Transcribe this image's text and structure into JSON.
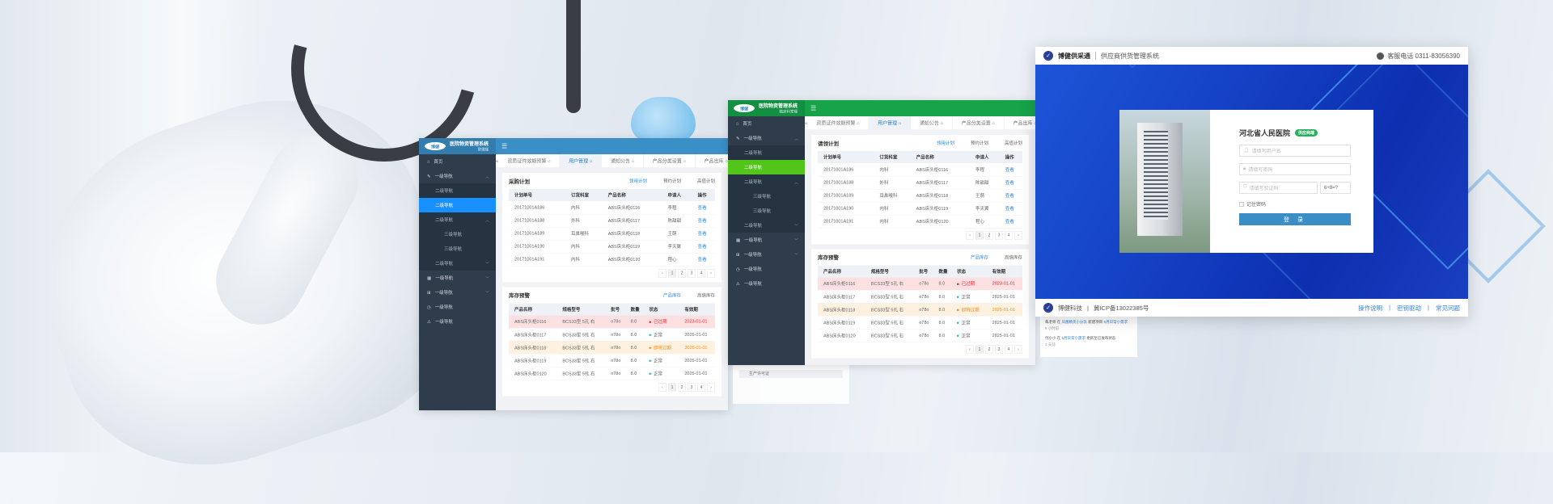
{
  "colors": {
    "admin1_header": "#3a8fc7",
    "admin1_active": "#1890ff",
    "admin2_header": "#16a34a",
    "admin2_active": "#52c41a",
    "sidebar": "#2e3c4c",
    "login_blue": "#1440c4",
    "link": "#2d8ae0",
    "expired": "#f5222d",
    "warning": "#fa8c16",
    "normal": "#13c2c2"
  },
  "admin1": {
    "logo": "博健",
    "title": "医院物资管理系统",
    "subtitle": "管理端",
    "menu_icon": "hamburger-icon",
    "tabs": [
      "资质证件效期预警",
      "用户管理",
      "通知公告",
      "产品分类设置",
      "产品出库"
    ],
    "active_tab": 1,
    "sidebar": [
      {
        "label": "首页",
        "level": 1,
        "icon": "home-icon"
      },
      {
        "label": "一级导航",
        "level": 1,
        "icon": "edit-icon",
        "chev": "^"
      },
      {
        "label": "二级导航",
        "level": 2
      },
      {
        "label": "二级导航",
        "level": 2,
        "active": true
      },
      {
        "label": "二级导航",
        "level": 2,
        "chev": "^"
      },
      {
        "label": "三级导航",
        "level": 3
      },
      {
        "label": "三级导航",
        "level": 3
      },
      {
        "label": "二级导航",
        "level": 2,
        "chev": "v"
      },
      {
        "label": "一级导航",
        "level": 1,
        "icon": "calendar-icon",
        "chev": "v"
      },
      {
        "label": "一级导航",
        "level": 1,
        "icon": "grid-icon",
        "chev": "v"
      },
      {
        "label": "一级导航",
        "level": 1,
        "icon": "clock-icon"
      },
      {
        "label": "一级导航",
        "level": 1,
        "icon": "warning-icon"
      }
    ],
    "plan": {
      "title": "采购计划",
      "tabs": [
        "领用计划",
        "预约计划",
        "高值计划"
      ],
      "active": 0,
      "headers": [
        "计划单号",
        "订货科室",
        "产品名称",
        "申请人",
        "操作"
      ],
      "rows": [
        [
          "20171001A186",
          "内科",
          "ABS床头柜0116",
          "李程",
          "查看"
        ],
        [
          "20171001A188",
          "外科",
          "ABS床头柜0117",
          "陈甜甜",
          "查看"
        ],
        [
          "20171001A189",
          "耳鼻喉科",
          "ABS床头柜0118",
          "王萌",
          "查看"
        ],
        [
          "20171001A190",
          "内科",
          "ABS床头柜0119",
          "李天翼",
          "查看"
        ],
        [
          "20171001A191",
          "内科",
          "ABS床头柜0120",
          "程心",
          "查看"
        ]
      ]
    },
    "stock": {
      "title": "库存预警",
      "tabs": [
        "产品库存",
        "高值库存"
      ],
      "active": 0,
      "headers": [
        "产品名称",
        "规格型号",
        "批号",
        "数量",
        "状态",
        "有效期"
      ],
      "rows": [
        [
          "ABS床头柜0116",
          "BCS33型 5孔 右",
          "o78o",
          "8.0",
          "已过期",
          "2023-01-01",
          "red"
        ],
        [
          "ABS床头柜0117",
          "BCS33型 5孔 右",
          "o78o",
          "8.0",
          "正常",
          "2025-01-01",
          ""
        ],
        [
          "ABS床头柜0118",
          "BCS33型 5孔 右",
          "o78o",
          "8.0",
          "即将过期",
          "2025-01-01",
          "orange"
        ],
        [
          "ABS床头柜0119",
          "BCS33型 5孔 右",
          "o78o",
          "8.0",
          "正常",
          "2025-01-01",
          ""
        ],
        [
          "ABS床头柜0120",
          "BCS33型 5孔 右",
          "o78o",
          "8.0",
          "正常",
          "2025-01-01",
          ""
        ]
      ]
    },
    "pagination": [
      "‹",
      "1",
      "2",
      "3",
      "4",
      "›"
    ]
  },
  "admin2": {
    "logo": "博健",
    "title": "医院物资管理系统",
    "subtitle": "临床科室端",
    "menu_icon": "hamburger-icon",
    "tabs": [
      "资质证件效期预警",
      "用户管理",
      "通知公告",
      "产品分类设置",
      "产品出库"
    ],
    "active_tab": 1,
    "sidebar": [
      {
        "label": "首页",
        "level": 1,
        "icon": "home-icon"
      },
      {
        "label": "一级导航",
        "level": 1,
        "icon": "edit-icon",
        "chev": "^"
      },
      {
        "label": "二级导航",
        "level": 2
      },
      {
        "label": "二级导航",
        "level": 2,
        "active": true
      },
      {
        "label": "二级导航",
        "level": 2,
        "chev": "^"
      },
      {
        "label": "三级导航",
        "level": 3
      },
      {
        "label": "三级导航",
        "level": 3
      },
      {
        "label": "二级导航",
        "level": 2,
        "chev": "v"
      },
      {
        "label": "一级导航",
        "level": 1,
        "icon": "calendar-icon",
        "chev": "v"
      },
      {
        "label": "一级导航",
        "level": 1,
        "icon": "grid-icon",
        "chev": "v"
      },
      {
        "label": "一级导航",
        "level": 1,
        "icon": "clock-icon"
      },
      {
        "label": "一级导航",
        "level": 1,
        "icon": "warning-icon"
      }
    ],
    "plan": {
      "title": "请领计划",
      "tabs": [
        "领用计划",
        "预约计划",
        "高值计划"
      ],
      "active": 0,
      "headers": [
        "计划单号",
        "订货科室",
        "产品名称",
        "申请人",
        "操作"
      ],
      "rows": [
        [
          "20171001A186",
          "内科",
          "ABS床头柜0116",
          "李程",
          "查看"
        ],
        [
          "20171001A188",
          "外科",
          "ABS床头柜0117",
          "陈甜甜",
          "查看"
        ],
        [
          "20171001A189",
          "耳鼻喉科",
          "ABS床头柜0118",
          "王萌",
          "查看"
        ],
        [
          "20171001A190",
          "内科",
          "ABS床头柜0119",
          "李天翼",
          "查看"
        ],
        [
          "20171001A191",
          "内科",
          "ABS床头柜0120",
          "程心",
          "查看"
        ]
      ]
    },
    "stock": {
      "title": "库存预警",
      "tabs": [
        "产品库存",
        "高值库存"
      ],
      "active": 0,
      "headers": [
        "产品名称",
        "规格型号",
        "批号",
        "数量",
        "状态",
        "有效期"
      ],
      "rows": [
        [
          "ABS床头柜0116",
          "BCS33型 5孔 右",
          "o78o",
          "8.0",
          "已过期",
          "2023-01-01",
          "red"
        ],
        [
          "ABS床头柜0117",
          "BCS33型 5孔 右",
          "o78o",
          "8.0",
          "正常",
          "2025-01-01",
          ""
        ],
        [
          "ABS床头柜0118",
          "BCS33型 5孔 右",
          "o78o",
          "8.0",
          "即将过期",
          "2025-01-01",
          "orange"
        ],
        [
          "ABS床头柜0119",
          "BCS33型 5孔 右",
          "o78o",
          "8.0",
          "正常",
          "2025-01-01",
          ""
        ],
        [
          "ABS床头柜0120",
          "BCS33型 5孔 右",
          "o78o",
          "8.0",
          "正常",
          "2025-01-01",
          ""
        ]
      ]
    },
    "pagination": [
      "‹",
      "1",
      "2",
      "3",
      "4",
      "›"
    ]
  },
  "ghost": {
    "item": "生产许可证"
  },
  "activity": [
    {
      "user": "朱老师",
      "in": "在",
      "group": "凤凰精英小分队",
      "action": "新建项目",
      "target": "5月日常小需求",
      "time": "5 小时前"
    },
    {
      "user": "付小小",
      "in": "在",
      "group": "5月日常小需求",
      "action": "更新至已发布状态",
      "target": "",
      "time": "3 天前"
    }
  ],
  "login": {
    "brand": "博健供采通",
    "system": "供应商供货管理系统",
    "phone": "客服电话 0311-83056390",
    "hospital": "河北省人民医院",
    "badge": "供应商端",
    "username_placeholder": "请填写用户名",
    "password_placeholder": "请填写密码",
    "captcha_placeholder": "请填写验证码",
    "captcha": "6+8=?",
    "remember": "记住密码",
    "submit": "登 录",
    "footer_company": "博健科技",
    "footer_icp": "冀ICP备13022385号",
    "links": [
      "操作说明",
      "密钥驱动",
      "常见问题"
    ]
  }
}
